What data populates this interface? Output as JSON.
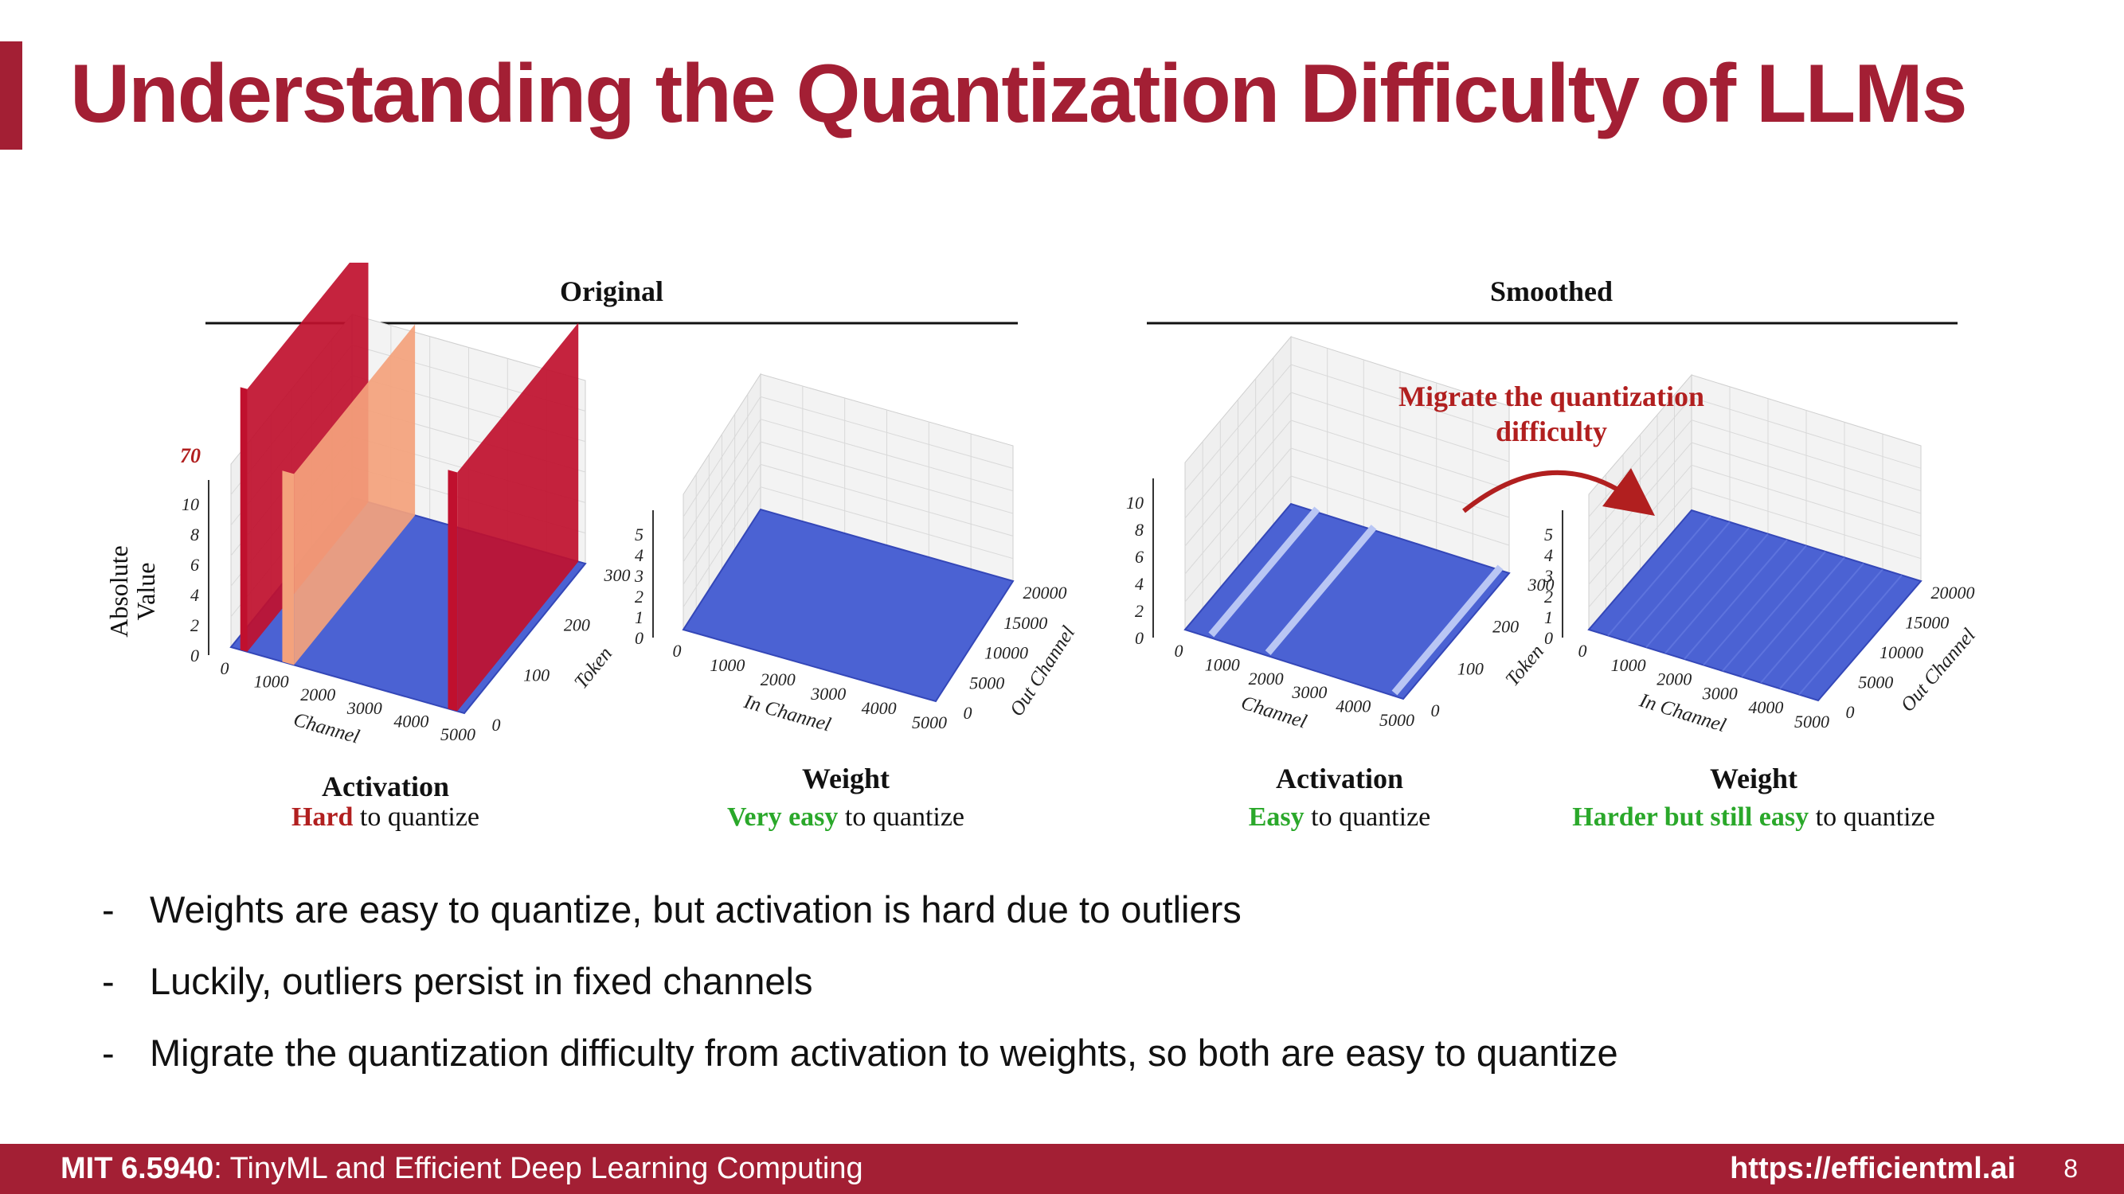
{
  "slide": {
    "title": "Understanding the Quantization Difficulty of LLMs"
  },
  "figure": {
    "groups": {
      "original": "Original",
      "smoothed": "Smoothed"
    },
    "annotation": [
      "Migrate the quantization",
      "difficulty"
    ],
    "colors": {
      "accent": "#a31f34",
      "hard_red": "#b11f1f",
      "easy_green": "#2aa82a",
      "surface_blue": "#4a63d6",
      "outlier_red": "#c0102e",
      "outlier_salmon": "#f4a27c"
    },
    "panels": [
      {
        "name": "Activation",
        "difficulty_word": "Hard",
        "difficulty_level": "hard",
        "suffix": "to quantize",
        "z_ticks": [
          "0",
          "2",
          "4",
          "6",
          "8",
          "10"
        ],
        "z_max_label": "70",
        "z_axis_label": [
          "Absolute",
          "Value"
        ],
        "x_ticks": [
          "0",
          "1000",
          "2000",
          "3000",
          "4000",
          "5000"
        ],
        "x_axis_label": "Channel",
        "y_ticks": [
          "0",
          "100",
          "200",
          "300"
        ],
        "y_axis_label": "Token"
      },
      {
        "name": "Weight",
        "difficulty_word": "Very easy",
        "difficulty_level": "easy",
        "suffix": "to quantize",
        "z_ticks": [
          "0",
          "1",
          "2",
          "3",
          "4",
          "5"
        ],
        "x_ticks": [
          "0",
          "1000",
          "2000",
          "3000",
          "4000",
          "5000"
        ],
        "x_axis_label": "In Channel",
        "y_ticks": [
          "0",
          "5000",
          "10000",
          "15000",
          "20000"
        ],
        "y_axis_label": "Out Channel"
      },
      {
        "name": "Activation",
        "difficulty_word": "Easy",
        "difficulty_level": "easy",
        "suffix": "to quantize",
        "z_ticks": [
          "0",
          "2",
          "4",
          "6",
          "8",
          "10"
        ],
        "x_ticks": [
          "0",
          "1000",
          "2000",
          "3000",
          "4000",
          "5000"
        ],
        "x_axis_label": "Channel",
        "y_ticks": [
          "0",
          "100",
          "200",
          "300"
        ],
        "y_axis_label": "Token"
      },
      {
        "name": "Weight",
        "difficulty_word": "Harder but still easy",
        "difficulty_level": "easy",
        "suffix": "to quantize",
        "z_ticks": [
          "0",
          "1",
          "2",
          "3",
          "4",
          "5"
        ],
        "x_ticks": [
          "0",
          "1000",
          "2000",
          "3000",
          "4000",
          "5000"
        ],
        "x_axis_label": "In Channel",
        "y_ticks": [
          "0",
          "5000",
          "10000",
          "15000",
          "20000"
        ],
        "y_axis_label": "Out Channel"
      }
    ]
  },
  "bullets": [
    "Weights are easy to quantize, but activation is hard due to outliers",
    "Luckily, outliers persist in fixed channels",
    "Migrate the quantization difficulty from activation to weights, so both are easy to quantize"
  ],
  "bullet_marker": "-",
  "footer": {
    "course_code": "MIT 6.5940",
    "course_name": ": TinyML and Efficient Deep Learning Computing",
    "url": "https://efficientml.ai",
    "page": "8"
  }
}
